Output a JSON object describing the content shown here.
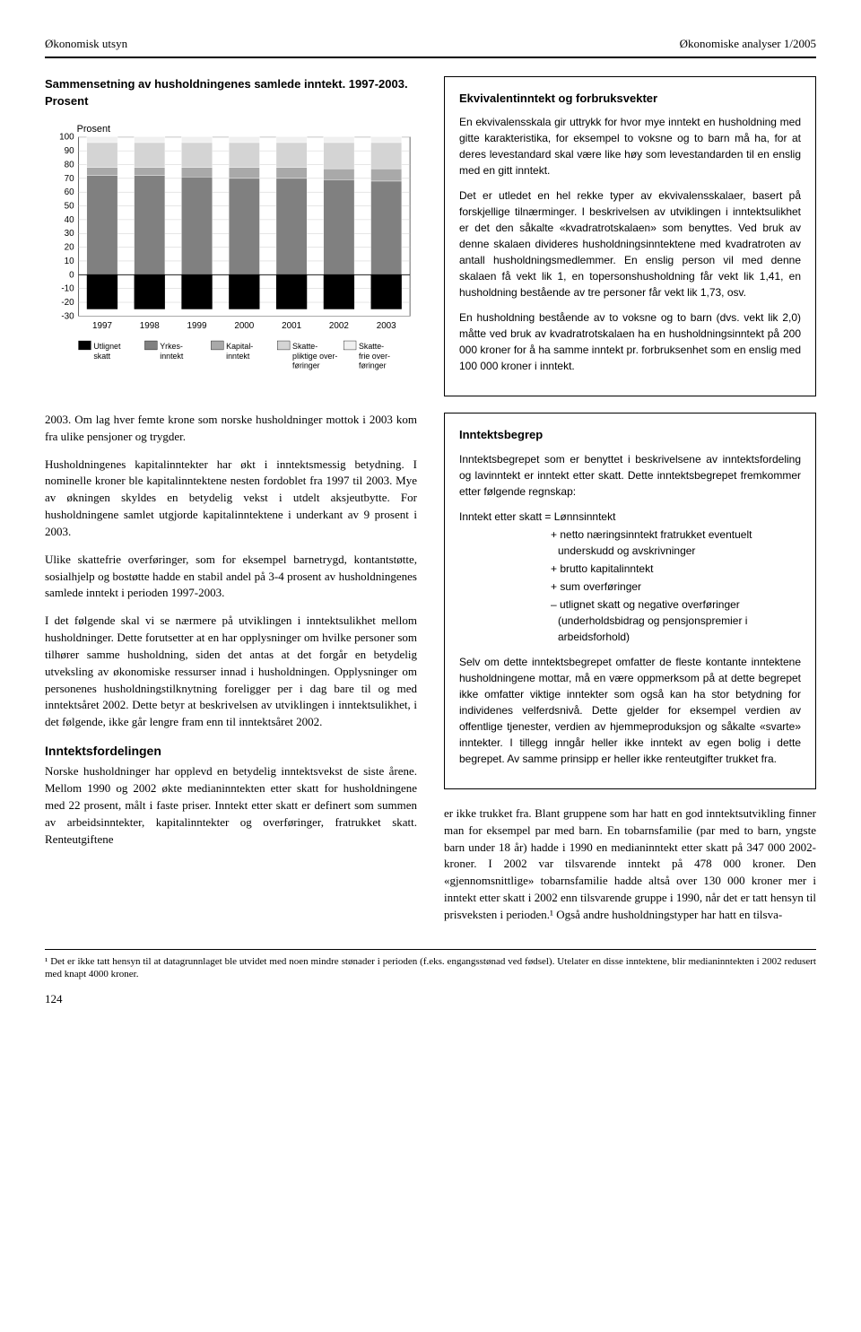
{
  "header": {
    "left": "Økonomisk utsyn",
    "right": "Økonomiske analyser 1/2005"
  },
  "chart": {
    "title": "Sammensetning av husholdningenes samlede inntekt. 1997-2003. Prosent",
    "ylabel": "Prosent",
    "years": [
      "1997",
      "1998",
      "1999",
      "2000",
      "2001",
      "2002",
      "2003"
    ],
    "yticks": [
      -30,
      -20,
      -10,
      0,
      10,
      20,
      30,
      40,
      50,
      60,
      70,
      80,
      90,
      100
    ],
    "legend": [
      {
        "label": "Utlignet skatt",
        "color": "#000000"
      },
      {
        "label": "Yrkes-inntekt",
        "color": "#808080"
      },
      {
        "label": "Kapital-inntekt",
        "color": "#a9a9a9"
      },
      {
        "label": "Skatte-pliktige over-føringer",
        "color": "#d4d4d4"
      },
      {
        "label": "Skatte-frie over-føringer",
        "color": "#f0f0f0"
      }
    ],
    "series": {
      "utlignet": [
        -25,
        -25,
        -25,
        -25,
        -25,
        -25,
        -25
      ],
      "yrkes": [
        72,
        72,
        71,
        70,
        70,
        69,
        68
      ],
      "kapital": [
        6,
        6,
        7,
        8,
        8,
        8,
        9
      ],
      "pliktige": [
        18,
        18,
        18,
        18,
        18,
        19,
        19
      ],
      "frie": [
        4,
        4,
        4,
        4,
        4,
        4,
        4
      ]
    },
    "bar_width": 0.65,
    "grid_color": "#cccccc",
    "bg": "#ffffff",
    "ylabel_fontsize": 11,
    "tick_fontsize": 10
  },
  "col1": {
    "p1": "2003. Om lag hver femte krone som norske husholdninger mottok i 2003 kom fra ulike pensjoner og trygder.",
    "p2": "Husholdningenes kapitalinntekter har økt i inntektsmessig betydning. I nominelle kroner ble kapitalinntektene nesten fordoblet fra 1997 til 2003. Mye av økningen skyldes en betydelig vekst i utdelt aksjeutbytte. For husholdningene samlet utgjorde kapitalinntektene i underkant av 9 prosent i 2003.",
    "p3": "Ulike skattefrie overføringer, som for eksempel barnetrygd, kontantstøtte, sosialhjelp og bostøtte hadde en stabil andel på 3-4 prosent av husholdningenes samlede inntekt i perioden 1997-2003.",
    "p4": "I det følgende skal vi se nærmere på utviklingen i inntektsulikhet mellom husholdninger. Dette forutsetter at en har opplysninger om hvilke personer som tilhører samme husholdning, siden det antas at det forgår en betydelig utveksling av økonomiske ressurser innad i husholdningen. Opplysninger om personenes husholdningstilknytning foreligger per i dag bare til og med inntektsåret 2002. Dette betyr at beskrivelsen av utviklingen i inntektsulikhet, i det følgende, ikke går lengre fram enn til inntektsåret 2002.",
    "h1": "Inntektsfordelingen",
    "p5": "Norske husholdninger har opplevd en betydelig inntektsvekst de siste årene. Mellom 1990 og 2002 økte medianinntekten etter skatt for husholdningene med 22 prosent, målt i faste priser. Inntekt etter skatt er definert som summen av arbeidsinntekter, kapitalinntekter og overføringer, fratrukket skatt. Renteutgiftene"
  },
  "box1": {
    "title": "Ekvivalentinntekt og forbruksvekter",
    "p1": "En ekvivalensskala gir uttrykk for hvor mye inntekt en husholdning med gitte karakteristika, for eksempel to voksne og to barn må ha, for at deres levestandard skal være like høy som levestandarden til en enslig med en gitt inntekt.",
    "p2": "Det er utledet en hel rekke typer av ekvivalensskalaer, basert på forskjellige tilnærminger. I beskrivelsen av utviklingen i inntektsulikhet er det den såkalte «kvadratrotskalaen» som benyttes. Ved bruk av denne skalaen divideres husholdningsinntektene med kvadratroten av antall husholdningsmedlemmer. En enslig person vil med denne skalaen få vekt lik 1, en topersonshusholdning får vekt lik 1,41, en husholdning bestående av tre personer får vekt lik 1,73, osv.",
    "p3": "En husholdning bestående av to voksne og to barn (dvs. vekt lik 2,0) måtte ved bruk av kvadratrotskalaen ha en husholdningsinntekt på 200 000 kroner for å ha samme inntekt pr. forbruksenhet som en enslig med 100 000 kroner i inntekt."
  },
  "box2": {
    "title": "Inntektsbegrep",
    "p1": "Inntektsbegrepet som er benyttet i beskrivelsene av inntektsfordeling og lavinntekt er inntekt etter skatt. Dette inntektsbegrepet fremkommer etter følgende regnskap:",
    "eq0": "Inntekt etter skatt = Lønnsinntekt",
    "eq1": "+ netto næringsinntekt fratrukket eventuelt underskudd og avskrivninger",
    "eq2": "+ brutto kapitalinntekt",
    "eq3": "+ sum overføringer",
    "eq4": "– utlignet skatt og negative overføringer (underholdsbidrag og pensjonspremier i arbeidsforhold)",
    "p2": "Selv om dette inntektsbegrepet omfatter de fleste kontante inntektene husholdningene mottar, må en være oppmerksom på at dette begrepet ikke omfatter viktige inntekter som også kan ha stor betydning for individenes velferdsnivå. Dette gjelder for eksempel verdien av offentlige tjenester, verdien av hjemmeproduksjon og såkalte «svarte» inntekter. I tillegg inngår heller ikke inntekt av egen bolig i dette begrepet. Av samme prinsipp er heller ikke renteutgifter trukket fra."
  },
  "col2_body": {
    "p1": "er ikke trukket fra. Blant gruppene som har hatt en god inntektsutvikling finner man for eksempel par med barn. En tobarnsfamilie (par med to barn, yngste barn under 18 år) hadde i 1990 en medianinntekt etter skatt på 347 000 2002-kroner. I 2002 var tilsvarende inntekt på 478 000 kroner. Den «gjennomsnittlige» tobarnsfamilie hadde altså over 130 000 kroner mer i inntekt etter skatt i 2002 enn tilsvarende gruppe i 1990, når det er tatt hensyn til prisveksten i perioden.¹ Også andre husholdningstyper har hatt en tilsva-"
  },
  "footnote": "¹ Det er ikke tatt hensyn til at datagrunnlaget ble utvidet med noen mindre stønader i perioden (f.eks. engangsstønad ved fødsel). Utelater en disse inntektene, blir medianinntekten i 2002 redusert med knapt 4000 kroner.",
  "pagenum": "124"
}
